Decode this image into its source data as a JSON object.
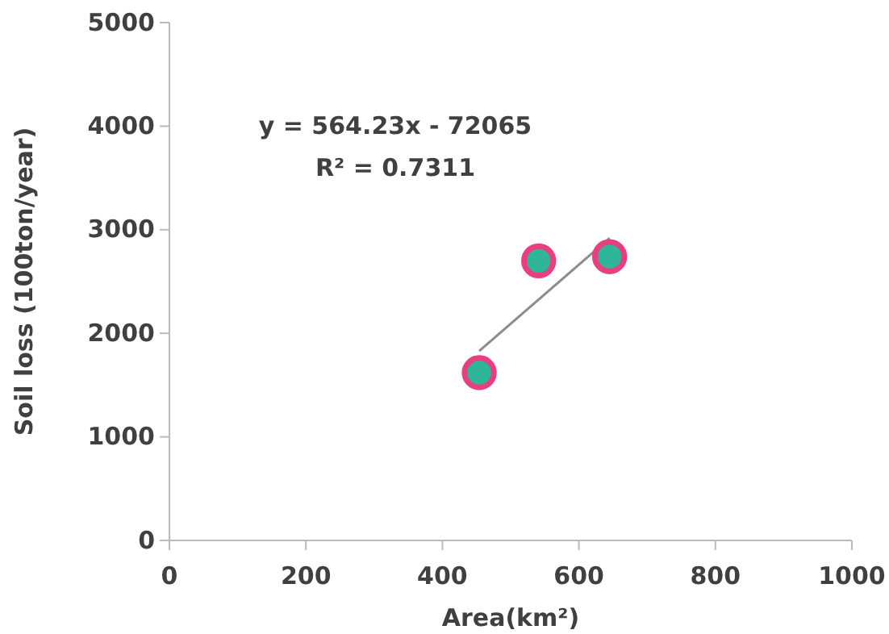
{
  "chart_data": {
    "type": "scatter",
    "xlabel": "Area(km²)",
    "ylabel": "Soil loss (100ton/year)",
    "xlim": [
      0,
      1000
    ],
    "xticks": [
      0,
      200,
      400,
      600,
      800,
      1000
    ],
    "ylim": [
      0,
      5000
    ],
    "yticks": [
      0,
      1000,
      2000,
      3000,
      4000,
      5000
    ],
    "grid": false,
    "annotations": [
      "y = 564.23x - 72065",
      "R² = 0.7311"
    ],
    "series": [
      {
        "color": "#2fb59a",
        "marker": "circle",
        "x": [
          454,
          541,
          645
        ],
        "values": [
          1620,
          2700,
          2740
        ]
      },
      {
        "type": "line",
        "color": "#8c8c8c",
        "x": [
          454,
          645
        ],
        "values": [
          1830,
          2920
        ]
      }
    ]
  }
}
